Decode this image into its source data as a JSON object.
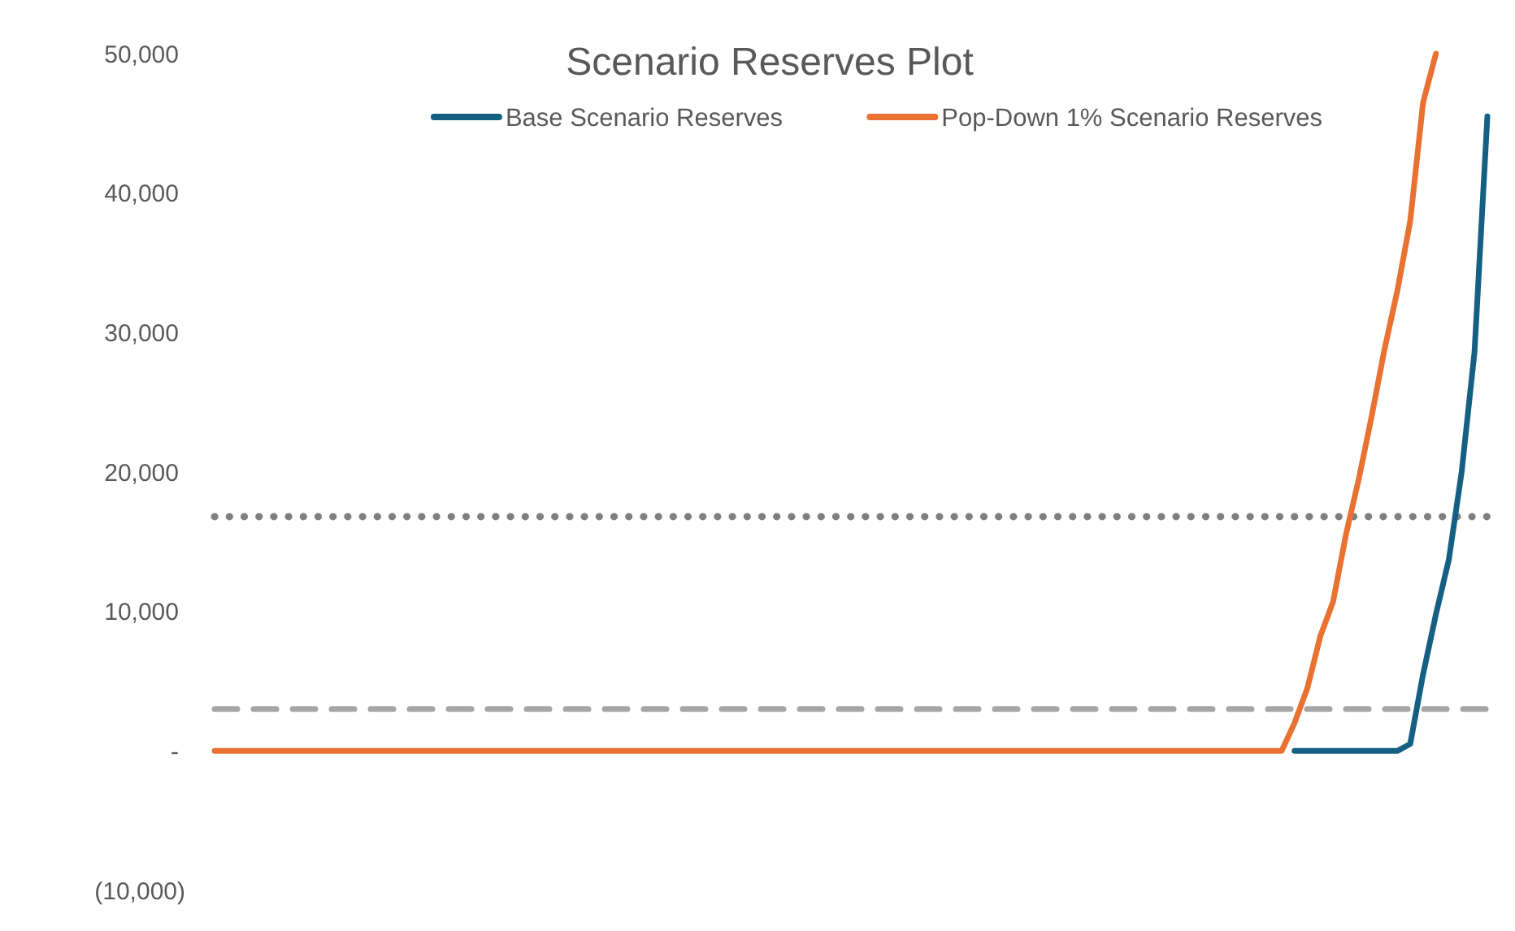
{
  "chart_data": {
    "type": "line",
    "title": "Scenario Reserves Plot",
    "categories": [
      null,
      null,
      null,
      null,
      null,
      null,
      null,
      null,
      null,
      null,
      null,
      null,
      null,
      null,
      null,
      null,
      null,
      null,
      null,
      null,
      null,
      null,
      null,
      null,
      null,
      null,
      null,
      null,
      null,
      null,
      null,
      null,
      null,
      null,
      null,
      null,
      null,
      null,
      null,
      null,
      null,
      null,
      null,
      null,
      null,
      null,
      null,
      null,
      null,
      null,
      null,
      null,
      null,
      null,
      null,
      null,
      null,
      null,
      null,
      null,
      null,
      null,
      null,
      null,
      null,
      null,
      null,
      null,
      null,
      null,
      null,
      null,
      null,
      null,
      null,
      null,
      null,
      null,
      null,
      null,
      null,
      null,
      null,
      null,
      null,
      null,
      null,
      null,
      null,
      null,
      null,
      null,
      null,
      null,
      null,
      null,
      null,
      null,
      null,
      null
    ],
    "series": [
      {
        "name": "Base Scenario Reserves",
        "color": "#156082",
        "values": [
          null,
          null,
          null,
          null,
          null,
          null,
          null,
          null,
          null,
          null,
          null,
          null,
          null,
          null,
          null,
          null,
          null,
          null,
          null,
          null,
          null,
          null,
          null,
          null,
          null,
          null,
          null,
          null,
          null,
          null,
          null,
          null,
          null,
          null,
          null,
          null,
          null,
          null,
          null,
          null,
          null,
          null,
          null,
          null,
          null,
          null,
          null,
          null,
          null,
          null,
          null,
          null,
          null,
          null,
          null,
          null,
          null,
          null,
          null,
          null,
          null,
          null,
          null,
          null,
          null,
          null,
          null,
          null,
          null,
          null,
          null,
          null,
          null,
          null,
          null,
          null,
          null,
          null,
          null,
          null,
          null,
          null,
          null,
          null,
          0,
          0,
          0,
          0,
          0,
          0,
          0,
          0,
          0,
          500,
          5500,
          9800,
          13700,
          20000,
          28600,
          45500
        ]
      },
      {
        "name": "Pop-Down 1% Scenario Reserves",
        "color": "#e97132",
        "values": [
          0,
          0,
          0,
          0,
          0,
          0,
          0,
          0,
          0,
          0,
          0,
          0,
          0,
          0,
          0,
          0,
          0,
          0,
          0,
          0,
          0,
          0,
          0,
          0,
          0,
          0,
          0,
          0,
          0,
          0,
          0,
          0,
          0,
          0,
          0,
          0,
          0,
          0,
          0,
          0,
          0,
          0,
          0,
          0,
          0,
          0,
          0,
          0,
          0,
          0,
          0,
          0,
          0,
          0,
          0,
          0,
          0,
          0,
          0,
          0,
          0,
          0,
          0,
          0,
          0,
          0,
          0,
          0,
          0,
          0,
          0,
          0,
          0,
          0,
          0,
          0,
          0,
          0,
          0,
          0,
          0,
          0,
          0,
          0,
          2000,
          4500,
          8200,
          10700,
          15500,
          19500,
          24000,
          28800,
          33000,
          38000,
          46500,
          50000,
          null,
          null,
          null,
          null
        ]
      }
    ],
    "ylim": [
      -10000,
      50000
    ],
    "yticks": [
      {
        "value": -10000,
        "label": "(10,000)"
      },
      {
        "value": 0,
        "label": "-"
      },
      {
        "value": 10000,
        "label": "10,000"
      },
      {
        "value": 20000,
        "label": "20,000"
      },
      {
        "value": 30000,
        "label": "30,000"
      },
      {
        "value": 40000,
        "label": "40,000"
      },
      {
        "value": 50000,
        "label": "50,000"
      }
    ],
    "ref_lines": [
      {
        "axis": "y",
        "value": 16800,
        "color": "#7f7f7f",
        "line_style": "dotted"
      },
      {
        "axis": "y",
        "value": 3000,
        "color": "#a6a6a6",
        "line_style": "dashed"
      }
    ],
    "legend": "top",
    "tick_labels": "y"
  }
}
